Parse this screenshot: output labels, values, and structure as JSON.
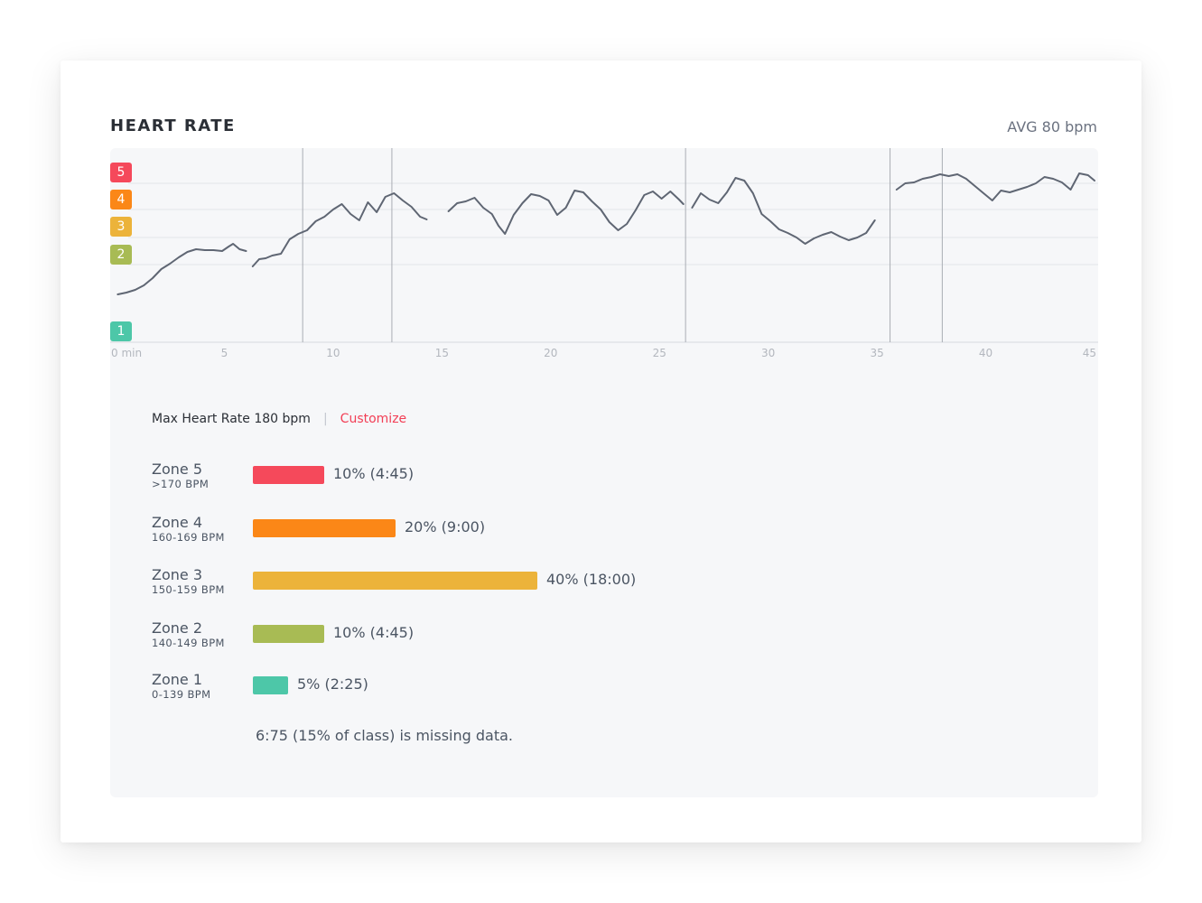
{
  "header": {
    "title": "HEART RATE",
    "avg": "AVG 80 bpm"
  },
  "zone_badges": [
    {
      "label": "5",
      "color": "#f5495b"
    },
    {
      "label": "4",
      "color": "#fb8717"
    },
    {
      "label": "3",
      "color": "#ecb33a"
    },
    {
      "label": "2",
      "color": "#a8bb54"
    },
    {
      "label": "1",
      "color": "#4dc7a8"
    }
  ],
  "chart_data": {
    "type": "line",
    "x_unit": "min",
    "x_ticks": [
      "0 min",
      "5",
      "10",
      "15",
      "20",
      "25",
      "30",
      "35",
      "40",
      "45"
    ],
    "xlim": [
      0,
      45
    ],
    "line_color": "#5f6673",
    "markers_min": [
      8.6,
      12.7,
      26.2,
      35.6,
      38.0
    ],
    "segments": [
      [
        [
          0.1,
          326
        ],
        [
          0.5,
          324
        ],
        [
          0.9,
          321
        ],
        [
          1.3,
          316
        ],
        [
          1.7,
          308
        ],
        [
          2.1,
          298
        ],
        [
          2.5,
          292
        ],
        [
          2.9,
          285
        ],
        [
          3.3,
          279
        ],
        [
          3.7,
          276
        ],
        [
          4.1,
          277
        ],
        [
          4.5,
          277
        ],
        [
          4.9,
          278
        ],
        [
          5.2,
          273
        ],
        [
          5.4,
          270
        ],
        [
          5.7,
          276
        ],
        [
          6.0,
          278
        ]
      ],
      [
        [
          6.3,
          295
        ],
        [
          6.6,
          287
        ],
        [
          6.9,
          286
        ],
        [
          7.2,
          283
        ],
        [
          7.6,
          281
        ],
        [
          8.0,
          265
        ],
        [
          8.4,
          259
        ],
        [
          8.8,
          255
        ],
        [
          9.2,
          245
        ],
        [
          9.6,
          240
        ],
        [
          10.0,
          232
        ],
        [
          10.4,
          226
        ],
        [
          10.8,
          237
        ],
        [
          11.2,
          244
        ],
        [
          11.6,
          224
        ],
        [
          12.0,
          235
        ],
        [
          12.4,
          218
        ],
        [
          12.8,
          214
        ],
        [
          13.2,
          222
        ],
        [
          13.6,
          229
        ],
        [
          14.0,
          240
        ],
        [
          14.3,
          243
        ]
      ],
      [
        [
          15.3,
          234
        ],
        [
          15.7,
          225
        ],
        [
          16.1,
          223
        ],
        [
          16.5,
          219
        ],
        [
          16.9,
          230
        ],
        [
          17.3,
          237
        ],
        [
          17.6,
          250
        ],
        [
          17.9,
          259
        ],
        [
          18.3,
          238
        ],
        [
          18.7,
          225
        ],
        [
          19.1,
          215
        ],
        [
          19.5,
          217
        ],
        [
          19.9,
          222
        ],
        [
          20.3,
          238
        ],
        [
          20.7,
          230
        ],
        [
          21.1,
          211
        ],
        [
          21.5,
          213
        ],
        [
          21.9,
          223
        ],
        [
          22.3,
          232
        ],
        [
          22.7,
          246
        ],
        [
          23.1,
          255
        ],
        [
          23.5,
          248
        ],
        [
          23.9,
          233
        ],
        [
          24.3,
          216
        ],
        [
          24.7,
          212
        ],
        [
          25.1,
          220
        ],
        [
          25.5,
          212
        ],
        [
          25.9,
          221
        ],
        [
          26.1,
          226
        ]
      ],
      [
        [
          26.5,
          230
        ],
        [
          26.9,
          214
        ],
        [
          27.3,
          221
        ],
        [
          27.7,
          225
        ],
        [
          28.1,
          213
        ],
        [
          28.5,
          197
        ],
        [
          28.9,
          200
        ],
        [
          29.3,
          214
        ],
        [
          29.7,
          237
        ],
        [
          30.1,
          245
        ],
        [
          30.5,
          254
        ],
        [
          30.9,
          258
        ],
        [
          31.3,
          263
        ],
        [
          31.7,
          270
        ],
        [
          32.1,
          264
        ],
        [
          32.5,
          260
        ],
        [
          32.9,
          257
        ],
        [
          33.3,
          262
        ],
        [
          33.7,
          266
        ],
        [
          34.1,
          263
        ],
        [
          34.5,
          258
        ],
        [
          34.9,
          244
        ]
      ],
      [
        [
          35.9,
          210
        ],
        [
          36.3,
          203
        ],
        [
          36.7,
          202
        ],
        [
          37.1,
          198
        ],
        [
          37.5,
          196
        ],
        [
          37.9,
          193
        ],
        [
          38.3,
          195
        ],
        [
          38.7,
          193
        ],
        [
          39.1,
          198
        ],
        [
          39.5,
          206
        ],
        [
          39.9,
          214
        ],
        [
          40.3,
          222
        ],
        [
          40.7,
          211
        ],
        [
          41.1,
          213
        ],
        [
          41.5,
          210
        ],
        [
          41.9,
          207
        ],
        [
          42.3,
          203
        ],
        [
          42.7,
          196
        ],
        [
          43.1,
          198
        ],
        [
          43.5,
          202
        ],
        [
          43.9,
          210
        ],
        [
          44.3,
          192
        ],
        [
          44.7,
          194
        ],
        [
          45.0,
          200
        ]
      ]
    ]
  },
  "max_hr": {
    "label": "Max Heart Rate 180 bpm",
    "separator": "|",
    "customize": "Customize"
  },
  "zones": [
    {
      "name": "Zone 5",
      "range": ">170 BPM",
      "pct_text": "10% (4:45)",
      "fraction": 0.1,
      "color": "#f5495b"
    },
    {
      "name": "Zone 4",
      "range": "160-169 BPM",
      "pct_text": "20% (9:00)",
      "fraction": 0.2,
      "color": "#fb8717"
    },
    {
      "name": "Zone 3",
      "range": "150-159 BPM",
      "pct_text": "40% (18:00)",
      "fraction": 0.4,
      "color": "#ecb33a"
    },
    {
      "name": "Zone 2",
      "range": "140-149 BPM",
      "pct_text": "10% (4:45)",
      "fraction": 0.1,
      "color": "#a8bb54"
    },
    {
      "name": "Zone 1",
      "range": "0-139 BPM",
      "pct_text": "5% (2:25)",
      "fraction": 0.05,
      "color": "#4dc7a8"
    }
  ],
  "missing_note": "6:75 (15% of class) is missing data."
}
